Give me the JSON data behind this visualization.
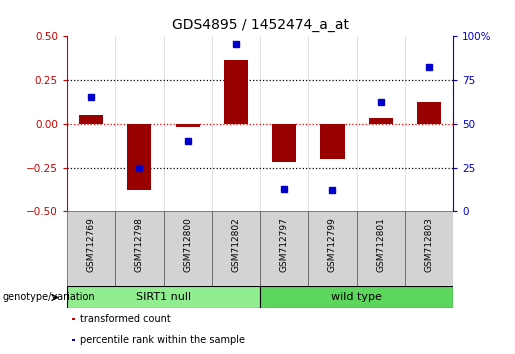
{
  "title": "GDS4895 / 1452474_a_at",
  "samples": [
    "GSM712769",
    "GSM712798",
    "GSM712800",
    "GSM712802",
    "GSM712797",
    "GSM712799",
    "GSM712801",
    "GSM712803"
  ],
  "transformed_count": [
    0.05,
    -0.38,
    -0.02,
    0.36,
    -0.22,
    -0.2,
    0.03,
    0.12
  ],
  "percentile_rank": [
    65,
    25,
    40,
    95,
    13,
    12,
    62,
    82
  ],
  "groups": [
    {
      "label": "SIRT1 null",
      "start": 0,
      "end": 4,
      "color": "#90ee90"
    },
    {
      "label": "wild type",
      "start": 4,
      "end": 8,
      "color": "#5cd65c"
    }
  ],
  "bar_color": "#990000",
  "dot_color": "#0000cc",
  "ylim_left": [
    -0.5,
    0.5
  ],
  "ylim_right": [
    0,
    100
  ],
  "yticks_left": [
    -0.5,
    -0.25,
    0,
    0.25,
    0.5
  ],
  "yticks_right": [
    0,
    25,
    50,
    75,
    100
  ],
  "legend_items": [
    {
      "color": "#cc0000",
      "label": "transformed count"
    },
    {
      "color": "#0000cc",
      "label": "percentile rank within the sample"
    }
  ],
  "group_label": "genotype/variation",
  "label_color_left": "#cc0000",
  "label_color_right": "#0000cc",
  "sample_bg": "#d3d3d3"
}
